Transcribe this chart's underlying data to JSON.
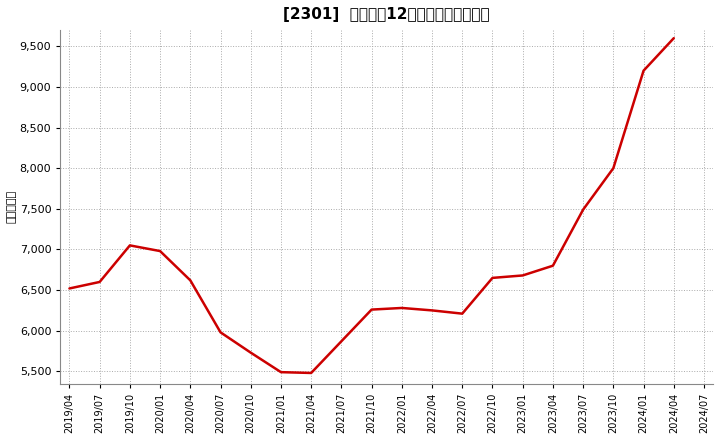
{
  "title": "[2301]  売上高の12か月移動合計の推移",
  "ylabel": "（百万円）",
  "line_color": "#cc0000",
  "bg_color": "#ffffff",
  "plot_bg_color": "#ffffff",
  "grid_color": "#aaaaaa",
  "ylim": [
    5350,
    9700
  ],
  "yticks": [
    5500,
    6000,
    6500,
    7000,
    7500,
    8000,
    8500,
    9000,
    9500
  ],
  "dates": [
    "2019/04",
    "2019/07",
    "2019/10",
    "2020/01",
    "2020/04",
    "2020/07",
    "2020/10",
    "2021/01",
    "2021/04",
    "2021/07",
    "2021/10",
    "2022/01",
    "2022/04",
    "2022/07",
    "2022/10",
    "2023/01",
    "2023/04",
    "2023/07",
    "2023/10",
    "2024/01",
    "2024/04",
    "2024/07"
  ],
  "values": [
    6520,
    6600,
    7050,
    6980,
    6620,
    5980,
    5730,
    5490,
    5480,
    5870,
    6260,
    6280,
    6250,
    6210,
    6650,
    6680,
    6800,
    7490,
    8000,
    9200,
    9600,
    null
  ]
}
